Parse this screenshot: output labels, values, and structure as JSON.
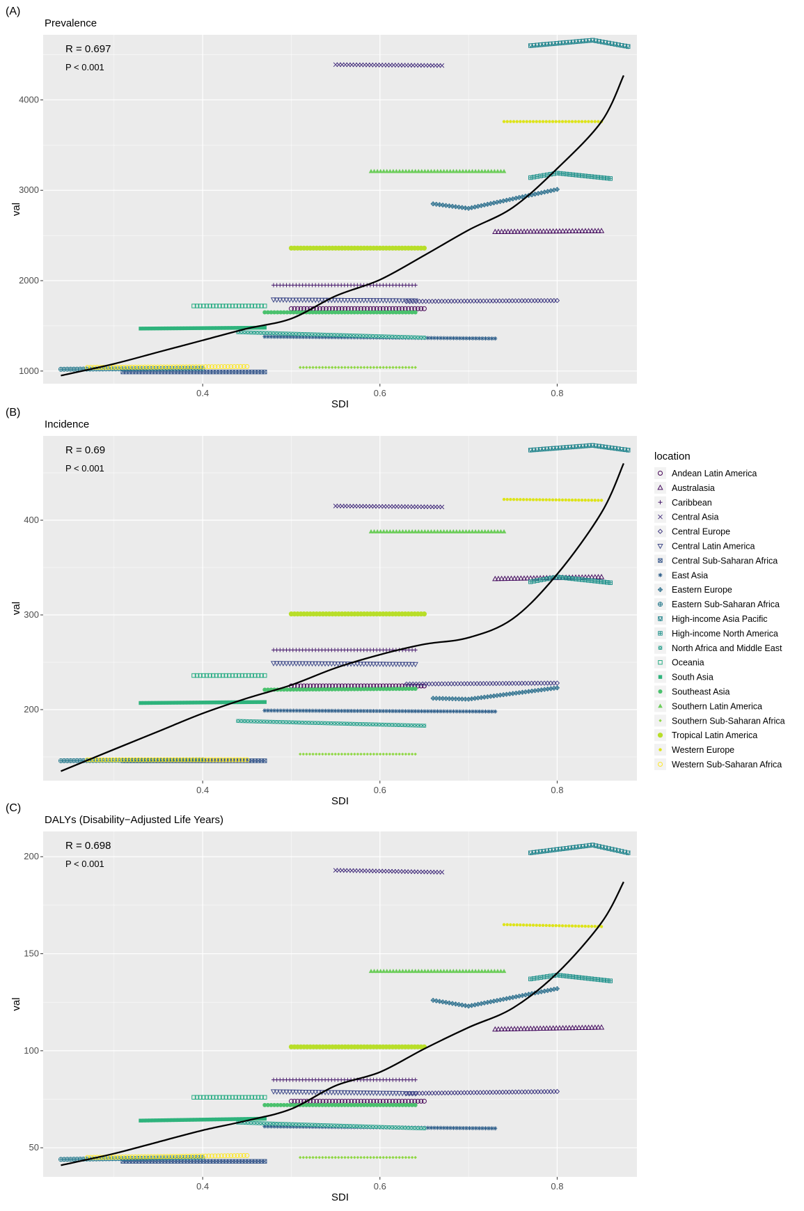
{
  "chart_data": [
    {
      "type": "scatter",
      "panel_label": "(A)",
      "title": "Prevalence",
      "xlabel": "SDI",
      "ylabel": "val",
      "xlim": [
        0.22,
        0.89
      ],
      "ylim": [
        860,
        4720
      ],
      "xticks": [
        0.4,
        0.6,
        0.8
      ],
      "xtick_labels": [
        "0.4",
        "0.6",
        "0.8"
      ],
      "yticks": [
        1000,
        2000,
        3000,
        4000
      ],
      "ytick_labels": [
        "1000",
        "2000",
        "3000",
        "4000"
      ],
      "grid": true,
      "stats": {
        "r": "R = 0.697",
        "p": "P < 0.001"
      },
      "series": [
        {
          "name": "Andean Latin America",
          "x": [
            0.5,
            0.65
          ],
          "y": [
            1690,
            1690
          ]
        },
        {
          "name": "Australasia",
          "x": [
            0.73,
            0.85
          ],
          "y": [
            2540,
            2550
          ]
        },
        {
          "name": "Caribbean",
          "x": [
            0.48,
            0.64
          ],
          "y": [
            1950,
            1950
          ]
        },
        {
          "name": "Central Asia",
          "x": [
            0.55,
            0.67
          ],
          "y": [
            4390,
            4380
          ]
        },
        {
          "name": "Central Europe",
          "x": [
            0.63,
            0.8
          ],
          "y": [
            1770,
            1780
          ]
        },
        {
          "name": "Central Latin America",
          "x": [
            0.48,
            0.64
          ],
          "y": [
            1790,
            1780
          ]
        },
        {
          "name": "Central Sub-Saharan Africa",
          "x": [
            0.31,
            0.47
          ],
          "y": [
            990,
            990
          ]
        },
        {
          "name": "East Asia",
          "x": [
            0.47,
            0.73
          ],
          "y": [
            1380,
            1360
          ]
        },
        {
          "name": "Eastern Europe",
          "x": [
            0.66,
            0.7,
            0.8
          ],
          "y": [
            2850,
            2800,
            3010
          ]
        },
        {
          "name": "Eastern Sub-Saharan Africa",
          "x": [
            0.24,
            0.4
          ],
          "y": [
            1020,
            1030
          ]
        },
        {
          "name": "High-income Asia Pacific",
          "x": [
            0.77,
            0.84,
            0.88
          ],
          "y": [
            4600,
            4660,
            4590
          ]
        },
        {
          "name": "High-income North America",
          "x": [
            0.77,
            0.8,
            0.86
          ],
          "y": [
            3140,
            3190,
            3130
          ]
        },
        {
          "name": "North Africa and Middle East",
          "x": [
            0.44,
            0.65
          ],
          "y": [
            1430,
            1370
          ]
        },
        {
          "name": "Oceania",
          "x": [
            0.39,
            0.47
          ],
          "y": [
            1720,
            1720
          ]
        },
        {
          "name": "South Asia",
          "x": [
            0.33,
            0.47
          ],
          "y": [
            1470,
            1480
          ]
        },
        {
          "name": "Southeast Asia",
          "x": [
            0.47,
            0.64
          ],
          "y": [
            1650,
            1650
          ]
        },
        {
          "name": "Southern Latin America",
          "x": [
            0.59,
            0.74
          ],
          "y": [
            3210,
            3210
          ]
        },
        {
          "name": "Southern Sub-Saharan Africa",
          "x": [
            0.51,
            0.64
          ],
          "y": [
            1040,
            1040
          ]
        },
        {
          "name": "Tropical Latin America",
          "x": [
            0.5,
            0.65
          ],
          "y": [
            2360,
            2360
          ]
        },
        {
          "name": "Western Europe",
          "x": [
            0.74,
            0.85
          ],
          "y": [
            3760,
            3760
          ]
        },
        {
          "name": "Western Sub-Saharan Africa",
          "x": [
            0.27,
            0.45
          ],
          "y": [
            1040,
            1050
          ]
        }
      ],
      "fit": {
        "x": [
          0.24,
          0.3,
          0.35,
          0.4,
          0.45,
          0.5,
          0.55,
          0.6,
          0.65,
          0.7,
          0.75,
          0.8,
          0.85,
          0.875
        ],
        "y": [
          950,
          1080,
          1210,
          1340,
          1470,
          1580,
          1830,
          2010,
          2280,
          2560,
          2810,
          3240,
          3760,
          4270
        ]
      }
    },
    {
      "type": "scatter",
      "panel_label": "(B)",
      "title": "Incidence",
      "xlabel": "SDI",
      "ylabel": "val",
      "xlim": [
        0.22,
        0.89
      ],
      "ylim": [
        125,
        489
      ],
      "xticks": [
        0.4,
        0.6,
        0.8
      ],
      "xtick_labels": [
        "0.4",
        "0.6",
        "0.8"
      ],
      "yticks": [
        200,
        300,
        400
      ],
      "ytick_labels": [
        "200",
        "300",
        "400"
      ],
      "grid": true,
      "stats": {
        "r": "R = 0.69",
        "p": "P < 0.001"
      },
      "series": [
        {
          "name": "Andean Latin America",
          "x": [
            0.5,
            0.65
          ],
          "y": [
            225,
            225
          ]
        },
        {
          "name": "Australasia",
          "x": [
            0.73,
            0.85
          ],
          "y": [
            338,
            340
          ]
        },
        {
          "name": "Caribbean",
          "x": [
            0.48,
            0.64
          ],
          "y": [
            263,
            263
          ]
        },
        {
          "name": "Central Asia",
          "x": [
            0.55,
            0.67
          ],
          "y": [
            415,
            414
          ]
        },
        {
          "name": "Central Europe",
          "x": [
            0.63,
            0.8
          ],
          "y": [
            227,
            228
          ]
        },
        {
          "name": "Central Latin America",
          "x": [
            0.48,
            0.64
          ],
          "y": [
            249,
            248
          ]
        },
        {
          "name": "Central Sub-Saharan Africa",
          "x": [
            0.31,
            0.47
          ],
          "y": [
            146,
            146
          ]
        },
        {
          "name": "East Asia",
          "x": [
            0.47,
            0.73
          ],
          "y": [
            199,
            198
          ]
        },
        {
          "name": "Eastern Europe",
          "x": [
            0.66,
            0.7,
            0.8
          ],
          "y": [
            212,
            211,
            223
          ]
        },
        {
          "name": "Eastern Sub-Saharan Africa",
          "x": [
            0.24,
            0.4
          ],
          "y": [
            146,
            147
          ]
        },
        {
          "name": "High-income Asia Pacific",
          "x": [
            0.77,
            0.84,
            0.88
          ],
          "y": [
            474,
            479,
            474
          ]
        },
        {
          "name": "High-income North America",
          "x": [
            0.77,
            0.8,
            0.86
          ],
          "y": [
            335,
            340,
            334
          ]
        },
        {
          "name": "North Africa and Middle East",
          "x": [
            0.44,
            0.65
          ],
          "y": [
            188,
            183
          ]
        },
        {
          "name": "Oceania",
          "x": [
            0.39,
            0.47
          ],
          "y": [
            236,
            236
          ]
        },
        {
          "name": "South Asia",
          "x": [
            0.33,
            0.47
          ],
          "y": [
            207,
            208
          ]
        },
        {
          "name": "Southeast Asia",
          "x": [
            0.47,
            0.64
          ],
          "y": [
            221,
            222
          ]
        },
        {
          "name": "Southern Latin America",
          "x": [
            0.59,
            0.74
          ],
          "y": [
            388,
            388
          ]
        },
        {
          "name": "Southern Sub-Saharan Africa",
          "x": [
            0.51,
            0.64
          ],
          "y": [
            153,
            153
          ]
        },
        {
          "name": "Tropical Latin America",
          "x": [
            0.5,
            0.65
          ],
          "y": [
            301,
            301
          ]
        },
        {
          "name": "Western Europe",
          "x": [
            0.74,
            0.85
          ],
          "y": [
            422,
            421
          ]
        },
        {
          "name": "Western Sub-Saharan Africa",
          "x": [
            0.27,
            0.45
          ],
          "y": [
            147,
            147
          ]
        }
      ],
      "fit": {
        "x": [
          0.24,
          0.3,
          0.35,
          0.4,
          0.45,
          0.5,
          0.55,
          0.6,
          0.65,
          0.7,
          0.75,
          0.8,
          0.85,
          0.875
        ],
        "y": [
          135,
          158,
          177,
          196,
          212,
          226,
          244,
          258,
          269,
          276,
          296,
          343,
          408,
          460
        ]
      }
    },
    {
      "type": "scatter",
      "panel_label": "(C)",
      "title": "DALYs (Disability−Adjusted Life Years)",
      "xlabel": "SDI",
      "ylabel": "val",
      "xlim": [
        0.22,
        0.89
      ],
      "ylim": [
        35,
        213
      ],
      "xticks": [
        0.4,
        0.6,
        0.8
      ],
      "xtick_labels": [
        "0.4",
        "0.6",
        "0.8"
      ],
      "yticks": [
        50,
        100,
        150,
        200
      ],
      "ytick_labels": [
        "50",
        "100",
        "150",
        "200"
      ],
      "grid": true,
      "stats": {
        "r": "R = 0.698",
        "p": "P < 0.001"
      },
      "series": [
        {
          "name": "Andean Latin America",
          "x": [
            0.5,
            0.65
          ],
          "y": [
            74,
            74
          ]
        },
        {
          "name": "Australasia",
          "x": [
            0.73,
            0.85
          ],
          "y": [
            111,
            112
          ]
        },
        {
          "name": "Caribbean",
          "x": [
            0.48,
            0.64
          ],
          "y": [
            85,
            85
          ]
        },
        {
          "name": "Central Asia",
          "x": [
            0.55,
            0.67
          ],
          "y": [
            193,
            192
          ]
        },
        {
          "name": "Central Europe",
          "x": [
            0.63,
            0.8
          ],
          "y": [
            78,
            79
          ]
        },
        {
          "name": "Central Latin America",
          "x": [
            0.48,
            0.64
          ],
          "y": [
            79,
            78
          ]
        },
        {
          "name": "Central Sub-Saharan Africa",
          "x": [
            0.31,
            0.47
          ],
          "y": [
            43,
            43
          ]
        },
        {
          "name": "East Asia",
          "x": [
            0.47,
            0.73
          ],
          "y": [
            61,
            60
          ]
        },
        {
          "name": "Eastern Europe",
          "x": [
            0.66,
            0.7,
            0.8
          ],
          "y": [
            126,
            123,
            132
          ]
        },
        {
          "name": "Eastern Sub-Saharan Africa",
          "x": [
            0.24,
            0.4
          ],
          "y": [
            44,
            45
          ]
        },
        {
          "name": "High-income Asia Pacific",
          "x": [
            0.77,
            0.84,
            0.88
          ],
          "y": [
            202,
            206,
            202
          ]
        },
        {
          "name": "High-income North America",
          "x": [
            0.77,
            0.8,
            0.86
          ],
          "y": [
            137,
            139,
            136
          ]
        },
        {
          "name": "North Africa and Middle East",
          "x": [
            0.44,
            0.65
          ],
          "y": [
            63,
            60
          ]
        },
        {
          "name": "Oceania",
          "x": [
            0.39,
            0.47
          ],
          "y": [
            76,
            76
          ]
        },
        {
          "name": "South Asia",
          "x": [
            0.33,
            0.47
          ],
          "y": [
            64,
            65
          ]
        },
        {
          "name": "Southeast Asia",
          "x": [
            0.47,
            0.64
          ],
          "y": [
            72,
            72
          ]
        },
        {
          "name": "Southern Latin America",
          "x": [
            0.59,
            0.74
          ],
          "y": [
            141,
            141
          ]
        },
        {
          "name": "Southern Sub-Saharan Africa",
          "x": [
            0.51,
            0.64
          ],
          "y": [
            45,
            45
          ]
        },
        {
          "name": "Tropical Latin America",
          "x": [
            0.5,
            0.65
          ],
          "y": [
            102,
            102
          ]
        },
        {
          "name": "Western Europe",
          "x": [
            0.74,
            0.85
          ],
          "y": [
            165,
            164
          ]
        },
        {
          "name": "Western Sub-Saharan Africa",
          "x": [
            0.27,
            0.45
          ],
          "y": [
            45,
            46
          ]
        }
      ],
      "fit": {
        "x": [
          0.24,
          0.3,
          0.35,
          0.4,
          0.45,
          0.5,
          0.55,
          0.6,
          0.65,
          0.7,
          0.75,
          0.8,
          0.85,
          0.875
        ],
        "y": [
          41,
          47,
          53,
          59,
          64,
          70,
          82,
          89,
          101,
          112,
          122,
          140,
          166,
          187
        ]
      }
    }
  ],
  "legend": {
    "title": "location",
    "placement": "right",
    "items": [
      {
        "label": "Andean Latin America",
        "shape": "circle-open",
        "color": "#440154"
      },
      {
        "label": "Australasia",
        "shape": "triangle-open",
        "color": "#470e61"
      },
      {
        "label": "Caribbean",
        "shape": "plus",
        "color": "#481b6d"
      },
      {
        "label": "Central Asia",
        "shape": "cross",
        "color": "#46307e"
      },
      {
        "label": "Central Europe",
        "shape": "diamond-open",
        "color": "#433d84"
      },
      {
        "label": "Central Latin America",
        "shape": "triangle-down-open",
        "color": "#3e4989"
      },
      {
        "label": "Central Sub-Saharan Africa",
        "shape": "square-cross",
        "color": "#38588c"
      },
      {
        "label": "East Asia",
        "shape": "asterisk",
        "color": "#33628d"
      },
      {
        "label": "Eastern Europe",
        "shape": "diamond-plus",
        "color": "#2d708e"
      },
      {
        "label": "Eastern Sub-Saharan Africa",
        "shape": "circle-plus",
        "color": "#297b8e"
      },
      {
        "label": "High-income Asia Pacific",
        "shape": "square-triangle",
        "color": "#24868e"
      },
      {
        "label": "High-income North America",
        "shape": "square-plus",
        "color": "#20928c"
      },
      {
        "label": "North Africa and Middle East",
        "shape": "square-x",
        "color": "#1f9e89"
      },
      {
        "label": "Oceania",
        "shape": "square-open",
        "color": "#25ab82"
      },
      {
        "label": "South Asia",
        "shape": "square",
        "color": "#2eb37c"
      },
      {
        "label": "Southeast Asia",
        "shape": "circle",
        "color": "#4ac16d"
      },
      {
        "label": "Southern Latin America",
        "shape": "triangle",
        "color": "#6ccd5a"
      },
      {
        "label": "Southern Sub-Saharan Africa",
        "shape": "diamond-small",
        "color": "#8fd744"
      },
      {
        "label": "Tropical Latin America",
        "shape": "circle-large",
        "color": "#b8de29"
      },
      {
        "label": "Western Europe",
        "shape": "bullet",
        "color": "#dde318"
      },
      {
        "label": "Western Sub-Saharan Africa",
        "shape": "circle-open",
        "color": "#fde725"
      }
    ]
  },
  "colors": {
    "panel_bg": "#ebebeb",
    "grid_major": "#ffffff",
    "fit_line": "#000000"
  }
}
